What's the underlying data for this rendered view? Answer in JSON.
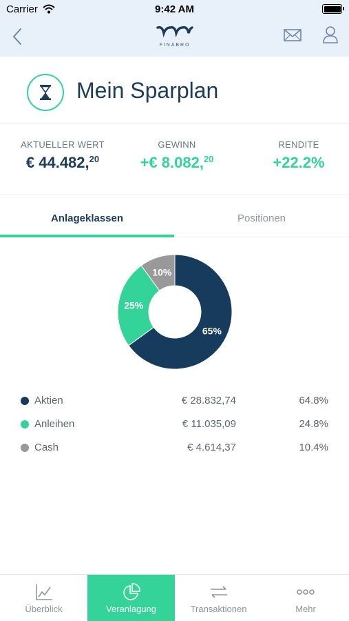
{
  "status_bar": {
    "carrier": "Carrier",
    "time": "9:42 AM"
  },
  "nav": {
    "logo_text": "FINABRO"
  },
  "header": {
    "title": "Mein Sparplan"
  },
  "stats": {
    "current_value": {
      "label": "AKTUELLER WERT",
      "main": "€ 44.482,",
      "cents": "20"
    },
    "gain": {
      "label": "GEWINN",
      "main": "+€ 8.082,",
      "cents": "20"
    },
    "return": {
      "label": "RENDITE",
      "value": "+22.2%"
    }
  },
  "tabs": [
    {
      "label": "Anlageklassen",
      "active": true
    },
    {
      "label": "Positionen",
      "active": false
    }
  ],
  "chart_data": {
    "type": "pie",
    "categories": [
      "Aktien",
      "Anleihen",
      "Cash"
    ],
    "values": [
      65,
      25,
      10
    ],
    "labels": [
      "65%",
      "25%",
      "10%"
    ],
    "colors": [
      "#163b5c",
      "#33d39a",
      "#999999"
    ]
  },
  "legend": [
    {
      "name": "Aktien",
      "amount": "€ 28.832,74",
      "pct": "64.8%",
      "color": "#163b5c"
    },
    {
      "name": "Anleihen",
      "amount": "€ 11.035,09",
      "pct": "24.8%",
      "color": "#33d39a"
    },
    {
      "name": "Cash",
      "amount": "€ 4.614,37",
      "pct": "10.4%",
      "color": "#999999"
    }
  ],
  "tabbar": [
    {
      "label": "Überblick",
      "icon": "line-chart-icon",
      "active": false
    },
    {
      "label": "Veranlagung",
      "icon": "pie-chart-icon",
      "active": true
    },
    {
      "label": "Transaktionen",
      "icon": "transfer-arrows-icon",
      "active": false
    },
    {
      "label": "Mehr",
      "icon": "more-dots-icon",
      "active": false
    }
  ]
}
